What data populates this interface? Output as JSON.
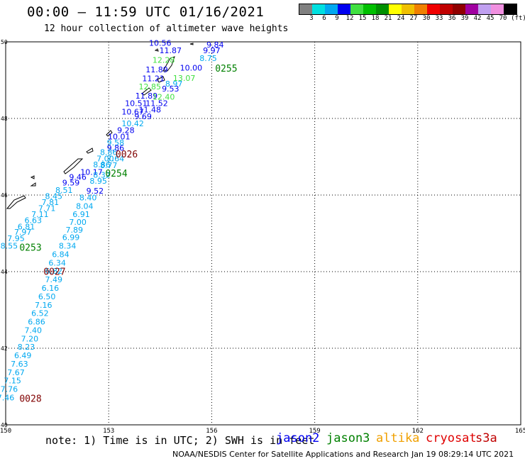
{
  "header": {
    "title": "00:00 – 11:59 UTC 01/16/2021",
    "subtitle": "12 hour collection of altimeter wave heights"
  },
  "colorbar": {
    "colors": [
      "#808080",
      "#00e0e0",
      "#00a8f0",
      "#0000f0",
      "#40e040",
      "#00c000",
      "#009000",
      "#ffff00",
      "#f0c000",
      "#f08000",
      "#f00000",
      "#c00000",
      "#900000",
      "#a000a0",
      "#c0a0f0",
      "#f090e0",
      "#000000"
    ],
    "labels": [
      "3",
      "6",
      "9",
      "12",
      "15",
      "18",
      "21",
      "24",
      "27",
      "30",
      "33",
      "36",
      "39",
      "42",
      "45",
      "70",
      "(ft)"
    ]
  },
  "map": {
    "lat_labels": [
      "50",
      "48",
      "46",
      "44",
      "42",
      "40"
    ],
    "lon_labels": [
      "150",
      "153",
      "156",
      "159",
      "162",
      "165"
    ],
    "lat_values": [
      50,
      48,
      46,
      44,
      42,
      40
    ],
    "lon_values": [
      150,
      153,
      156,
      159,
      162,
      165
    ]
  },
  "observations": [
    {
      "v": "10.56",
      "lon": 154.5,
      "lat": 49.9,
      "c": "#0000f0"
    },
    {
      "v": "9.84",
      "lon": 156.1,
      "lat": 49.85,
      "c": "#0000f0"
    },
    {
      "v": "11.87",
      "lon": 154.8,
      "lat": 49.7,
      "c": "#0000f0"
    },
    {
      "v": "9.97",
      "lon": 156.0,
      "lat": 49.7,
      "c": "#0000f0"
    },
    {
      "v": "8.75",
      "lon": 155.9,
      "lat": 49.5,
      "c": "#00a8f0"
    },
    {
      "v": "12.28",
      "lon": 154.6,
      "lat": 49.45,
      "c": "#40e040"
    },
    {
      "v": "10.00",
      "lon": 155.4,
      "lat": 49.25,
      "c": "#0000f0"
    },
    {
      "v": "11.89",
      "lon": 154.4,
      "lat": 49.2,
      "c": "#0000f0"
    },
    {
      "v": "13.07",
      "lon": 155.2,
      "lat": 48.98,
      "c": "#40e040"
    },
    {
      "v": "11.21",
      "lon": 154.3,
      "lat": 48.97,
      "c": "#0000f0"
    },
    {
      "v": "8.97",
      "lon": 154.9,
      "lat": 48.83,
      "c": "#00a8f0"
    },
    {
      "v": "12.85",
      "lon": 154.2,
      "lat": 48.76,
      "c": "#40e040"
    },
    {
      "v": "9.53",
      "lon": 154.8,
      "lat": 48.7,
      "c": "#0000f0"
    },
    {
      "v": "11.89",
      "lon": 154.1,
      "lat": 48.52,
      "c": "#0000f0"
    },
    {
      "v": "12.40",
      "lon": 154.6,
      "lat": 48.49,
      "c": "#40e040"
    },
    {
      "v": "10.51",
      "lon": 153.8,
      "lat": 48.32,
      "c": "#0000f0"
    },
    {
      "v": "11.52",
      "lon": 154.4,
      "lat": 48.32,
      "c": "#0000f0"
    },
    {
      "v": "11.48",
      "lon": 154.2,
      "lat": 48.16,
      "c": "#0000f0"
    },
    {
      "v": "10.67",
      "lon": 153.7,
      "lat": 48.1,
      "c": "#0000f0"
    },
    {
      "v": "9.69",
      "lon": 154.0,
      "lat": 47.98,
      "c": "#0000f0"
    },
    {
      "v": "10.42",
      "lon": 153.7,
      "lat": 47.8,
      "c": "#00a8f0"
    },
    {
      "v": "9.28",
      "lon": 153.5,
      "lat": 47.62,
      "c": "#0000f0"
    },
    {
      "v": "10.01",
      "lon": 153.3,
      "lat": 47.45,
      "c": "#0000f0"
    },
    {
      "v": "9.58",
      "lon": 153.2,
      "lat": 47.3,
      "c": "#00a8f0"
    },
    {
      "v": "9.86",
      "lon": 153.2,
      "lat": 47.16,
      "c": "#0000f0"
    },
    {
      "v": "8.86",
      "lon": 153.0,
      "lat": 47.05,
      "c": "#00a8f0"
    },
    {
      "v": "7.00",
      "lon": 152.9,
      "lat": 46.88,
      "c": "#00a8f0"
    },
    {
      "v": "7.64",
      "lon": 153.2,
      "lat": 46.88,
      "c": "#00a8f0"
    },
    {
      "v": "8.86",
      "lon": 152.8,
      "lat": 46.72,
      "c": "#00a8f0"
    },
    {
      "v": "8.77",
      "lon": 153.0,
      "lat": 46.7,
      "c": "#00a8f0"
    },
    {
      "v": "10.17",
      "lon": 152.5,
      "lat": 46.53,
      "c": "#0000f0"
    },
    {
      "v": "8.32",
      "lon": 152.8,
      "lat": 46.45,
      "c": "#00a8f0"
    },
    {
      "v": "9.46",
      "lon": 152.1,
      "lat": 46.4,
      "c": "#0000f0"
    },
    {
      "v": "8.95",
      "lon": 152.7,
      "lat": 46.3,
      "c": "#00a8f0"
    },
    {
      "v": "9.59",
      "lon": 151.9,
      "lat": 46.25,
      "c": "#0000f0"
    },
    {
      "v": "8.51",
      "lon": 151.7,
      "lat": 46.06,
      "c": "#00a8f0"
    },
    {
      "v": "9.52",
      "lon": 152.6,
      "lat": 46.04,
      "c": "#0000f0"
    },
    {
      "v": "8.45",
      "lon": 151.4,
      "lat": 45.9,
      "c": "#00a8f0"
    },
    {
      "v": "8.40",
      "lon": 152.4,
      "lat": 45.86,
      "c": "#00a8f0"
    },
    {
      "v": "7.81",
      "lon": 151.3,
      "lat": 45.74,
      "c": "#00a8f0"
    },
    {
      "v": "8.04",
      "lon": 152.3,
      "lat": 45.64,
      "c": "#00a8f0"
    },
    {
      "v": "7.71",
      "lon": 151.2,
      "lat": 45.58,
      "c": "#00a8f0"
    },
    {
      "v": "7.11",
      "lon": 151.0,
      "lat": 45.43,
      "c": "#00a8f0"
    },
    {
      "v": "6.91",
      "lon": 152.2,
      "lat": 45.43,
      "c": "#00a8f0"
    },
    {
      "v": "6.63",
      "lon": 150.8,
      "lat": 45.27,
      "c": "#00a8f0"
    },
    {
      "v": "7.00",
      "lon": 152.1,
      "lat": 45.22,
      "c": "#00a8f0"
    },
    {
      "v": "6.81",
      "lon": 150.6,
      "lat": 45.1,
      "c": "#00a8f0"
    },
    {
      "v": "7.89",
      "lon": 152.0,
      "lat": 45.02,
      "c": "#00a8f0"
    },
    {
      "v": "7.97",
      "lon": 150.5,
      "lat": 44.96,
      "c": "#00a8f0"
    },
    {
      "v": "6.99",
      "lon": 151.9,
      "lat": 44.82,
      "c": "#00a8f0"
    },
    {
      "v": "7.95",
      "lon": 150.3,
      "lat": 44.8,
      "c": "#00a8f0"
    },
    {
      "v": "8.55",
      "lon": 150.1,
      "lat": 44.6,
      "c": "#00a8f0"
    },
    {
      "v": "8.34",
      "lon": 151.8,
      "lat": 44.6,
      "c": "#00a8f0"
    },
    {
      "v": "6.84",
      "lon": 151.6,
      "lat": 44.38,
      "c": "#00a8f0"
    },
    {
      "v": "6.34",
      "lon": 151.5,
      "lat": 44.16,
      "c": "#00a8f0"
    },
    {
      "v": "6.82",
      "lon": 151.4,
      "lat": 43.94,
      "c": "#00a8f0"
    },
    {
      "v": "7.49",
      "lon": 151.4,
      "lat": 43.72,
      "c": "#00a8f0"
    },
    {
      "v": "6.16",
      "lon": 151.3,
      "lat": 43.5,
      "c": "#00a8f0"
    },
    {
      "v": "6.50",
      "lon": 151.2,
      "lat": 43.28,
      "c": "#00a8f0"
    },
    {
      "v": "7.16",
      "lon": 151.1,
      "lat": 43.06,
      "c": "#00a8f0"
    },
    {
      "v": "6.52",
      "lon": 151.0,
      "lat": 42.84,
      "c": "#00a8f0"
    },
    {
      "v": "6.86",
      "lon": 150.9,
      "lat": 42.62,
      "c": "#00a8f0"
    },
    {
      "v": "7.40",
      "lon": 150.8,
      "lat": 42.4,
      "c": "#00a8f0"
    },
    {
      "v": "7.20",
      "lon": 150.7,
      "lat": 42.18,
      "c": "#00a8f0"
    },
    {
      "v": "8.23",
      "lon": 150.6,
      "lat": 41.96,
      "c": "#00a8f0"
    },
    {
      "v": "6.49",
      "lon": 150.5,
      "lat": 41.74,
      "c": "#00a8f0"
    },
    {
      "v": "7.63",
      "lon": 150.4,
      "lat": 41.52,
      "c": "#00a8f0"
    },
    {
      "v": "7.67",
      "lon": 150.3,
      "lat": 41.3,
      "c": "#00a8f0"
    },
    {
      "v": "7.15",
      "lon": 150.2,
      "lat": 41.08,
      "c": "#00a8f0"
    },
    {
      "v": "7.76",
      "lon": 150.1,
      "lat": 40.86,
      "c": "#00a8f0"
    },
    {
      "v": "7.46",
      "lon": 150.0,
      "lat": 40.64,
      "c": "#00a8f0"
    }
  ],
  "pass_labels": [
    {
      "t": "0255",
      "lon": 156.1,
      "lat": 49.22,
      "c": "#008000"
    },
    {
      "t": "0026",
      "lon": 153.2,
      "lat": 46.98,
      "c": "#800000"
    },
    {
      "t": "0254",
      "lon": 152.9,
      "lat": 46.48,
      "c": "#008000"
    },
    {
      "t": "0253",
      "lon": 150.4,
      "lat": 44.55,
      "c": "#008000"
    },
    {
      "t": "0027",
      "lon": 151.1,
      "lat": 43.92,
      "c": "#800000"
    },
    {
      "t": "0028",
      "lon": 150.4,
      "lat": 40.6,
      "c": "#800000"
    }
  ],
  "footer": {
    "note": "note: 1) Time is in UTC; 2) SWH is in feet",
    "legend": [
      {
        "name": "jason2",
        "color": "#0000f0"
      },
      {
        "name": "jason3",
        "color": "#008000"
      },
      {
        "name": "altika",
        "color": "#f0a000"
      },
      {
        "name": "cryosat",
        "color": "#e00000"
      },
      {
        "name": "s3a",
        "color": "#c00000"
      }
    ],
    "credit": "NOAA/NESDIS Center for Satellite Applications and Research",
    "timestamp": "Jan 19 08:29:14 UTC 2021"
  }
}
